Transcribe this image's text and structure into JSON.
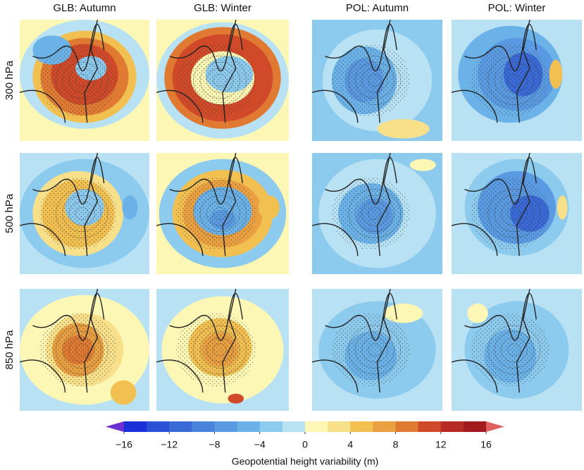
{
  "columns": [
    "GLB: Autumn",
    "GLB: Winter",
    "POL: Autumn",
    "POL: Winter"
  ],
  "rows": [
    "300 hPa",
    "500 hPa",
    "850 hPa"
  ],
  "colorbar": {
    "label": "Geopotential height variability (m)",
    "lim": [
      -16,
      16
    ],
    "ticks": [
      {
        "value": -16,
        "label": "−16"
      },
      {
        "value": -12,
        "label": "−12"
      },
      {
        "value": -8,
        "label": "−8"
      },
      {
        "value": -4,
        "label": "−4"
      },
      0,
      4,
      8,
      12,
      16
    ],
    "colors": [
      "#1a2fd8",
      "#2a52d8",
      "#3a6ad8",
      "#4a82dc",
      "#5a9ae2",
      "#6ab2e8",
      "#8ccaee",
      "#b8e2f4",
      "#fcf7b4",
      "#f8e08a",
      "#f2c050",
      "#eaa040",
      "#e07a32",
      "#d04a2a",
      "#b82a24",
      "#a01a1e"
    ],
    "extend_colors": [
      "#6a2fd0",
      "#e06060"
    ]
  }
}
